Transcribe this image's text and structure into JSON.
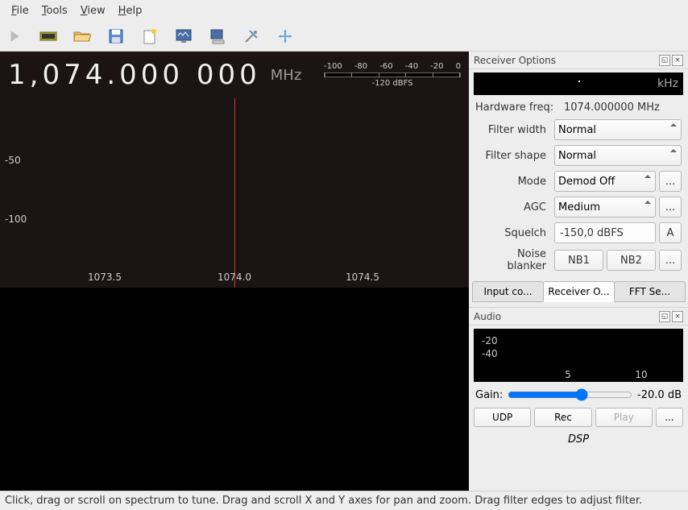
{
  "menu": {
    "file": "File",
    "tools": "Tools",
    "view": "View",
    "help": "Help"
  },
  "frequency": {
    "digits": "1,074.000 000",
    "unit": "MHz"
  },
  "dbfs": {
    "ticks": [
      "-100",
      "-80",
      "-60",
      "-40",
      "-20",
      "0"
    ],
    "label": "-120 dBFS"
  },
  "spectrum": {
    "yticks": [
      {
        "v": "-50",
        "y": 128
      },
      {
        "v": "-100",
        "y": 201
      }
    ],
    "xticks": [
      {
        "v": "1073.5",
        "x": 130
      },
      {
        "v": "1074.0",
        "x": 291
      },
      {
        "v": "1074.5",
        "x": 450
      }
    ],
    "centerline_x": 291
  },
  "receiver": {
    "title": "Receiver Options",
    "rx_unit": "kHz",
    "hw_label": "Hardware freq:",
    "hw_value": "1074.000000 MHz",
    "filter_width_label": "Filter width",
    "filter_width": "Normal",
    "filter_shape_label": "Filter shape",
    "filter_shape": "Normal",
    "mode_label": "Mode",
    "mode": "Demod Off",
    "agc_label": "AGC",
    "agc": "Medium",
    "squelch_label": "Squelch",
    "squelch": "-150,0 dBFS",
    "squelch_btn": "A",
    "nb_label": "Noise blanker",
    "nb1": "NB1",
    "nb2": "NB2",
    "more": "...",
    "tabs": {
      "input": "Input co...",
      "receiver": "Receiver O...",
      "fft": "FFT Se..."
    }
  },
  "audio": {
    "title": "Audio",
    "yl1": "-20",
    "yl2": "-40",
    "xl1": "5",
    "xl2": "10",
    "gain_label": "Gain:",
    "gain_value": "-20.0 dB",
    "udp": "UDP",
    "rec": "Rec",
    "play": "Play",
    "more": "...",
    "dsp": "DSP"
  },
  "status": "Click, drag or scroll on spectrum to tune. Drag and scroll X and Y axes for pan and zoom. Drag filter edges to adjust filter."
}
